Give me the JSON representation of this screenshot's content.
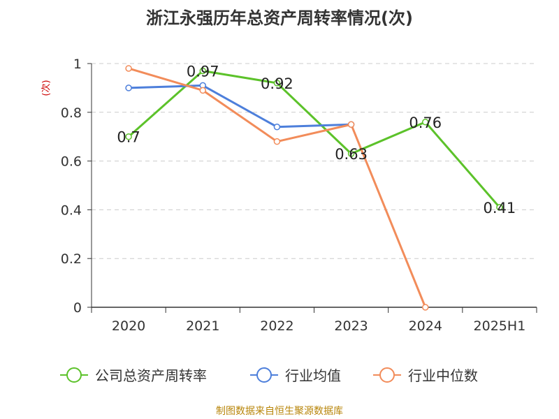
{
  "title": "浙江永强历年总资产周转率情况(次)",
  "source": "制图数据来自恒生聚源数据库",
  "chart_data": {
    "type": "line",
    "categories": [
      "2020",
      "2021",
      "2022",
      "2023",
      "2024",
      "2025H1"
    ],
    "ylabel": "(次)",
    "ylim": [
      0,
      1
    ],
    "yticks": [
      "0",
      "0.2",
      "0.4",
      "0.6",
      "0.8",
      "1"
    ],
    "grid": true,
    "legend_position": "bottom",
    "series": [
      {
        "name": "公司总资产周转率",
        "color": "#5cc22a",
        "values": [
          0.7,
          0.97,
          0.92,
          0.63,
          0.76,
          0.41
        ],
        "labels": [
          "0.7",
          "0.97",
          "0.92",
          "0.63",
          "0.76",
          "0.41"
        ]
      },
      {
        "name": "行业均值",
        "color": "#4d7fdb",
        "values": [
          0.9,
          0.91,
          0.74,
          0.75,
          null,
          null
        ]
      },
      {
        "name": "行业中位数",
        "color": "#f28c5a",
        "values": [
          0.98,
          0.89,
          0.68,
          0.75,
          0.0,
          null
        ]
      }
    ]
  }
}
